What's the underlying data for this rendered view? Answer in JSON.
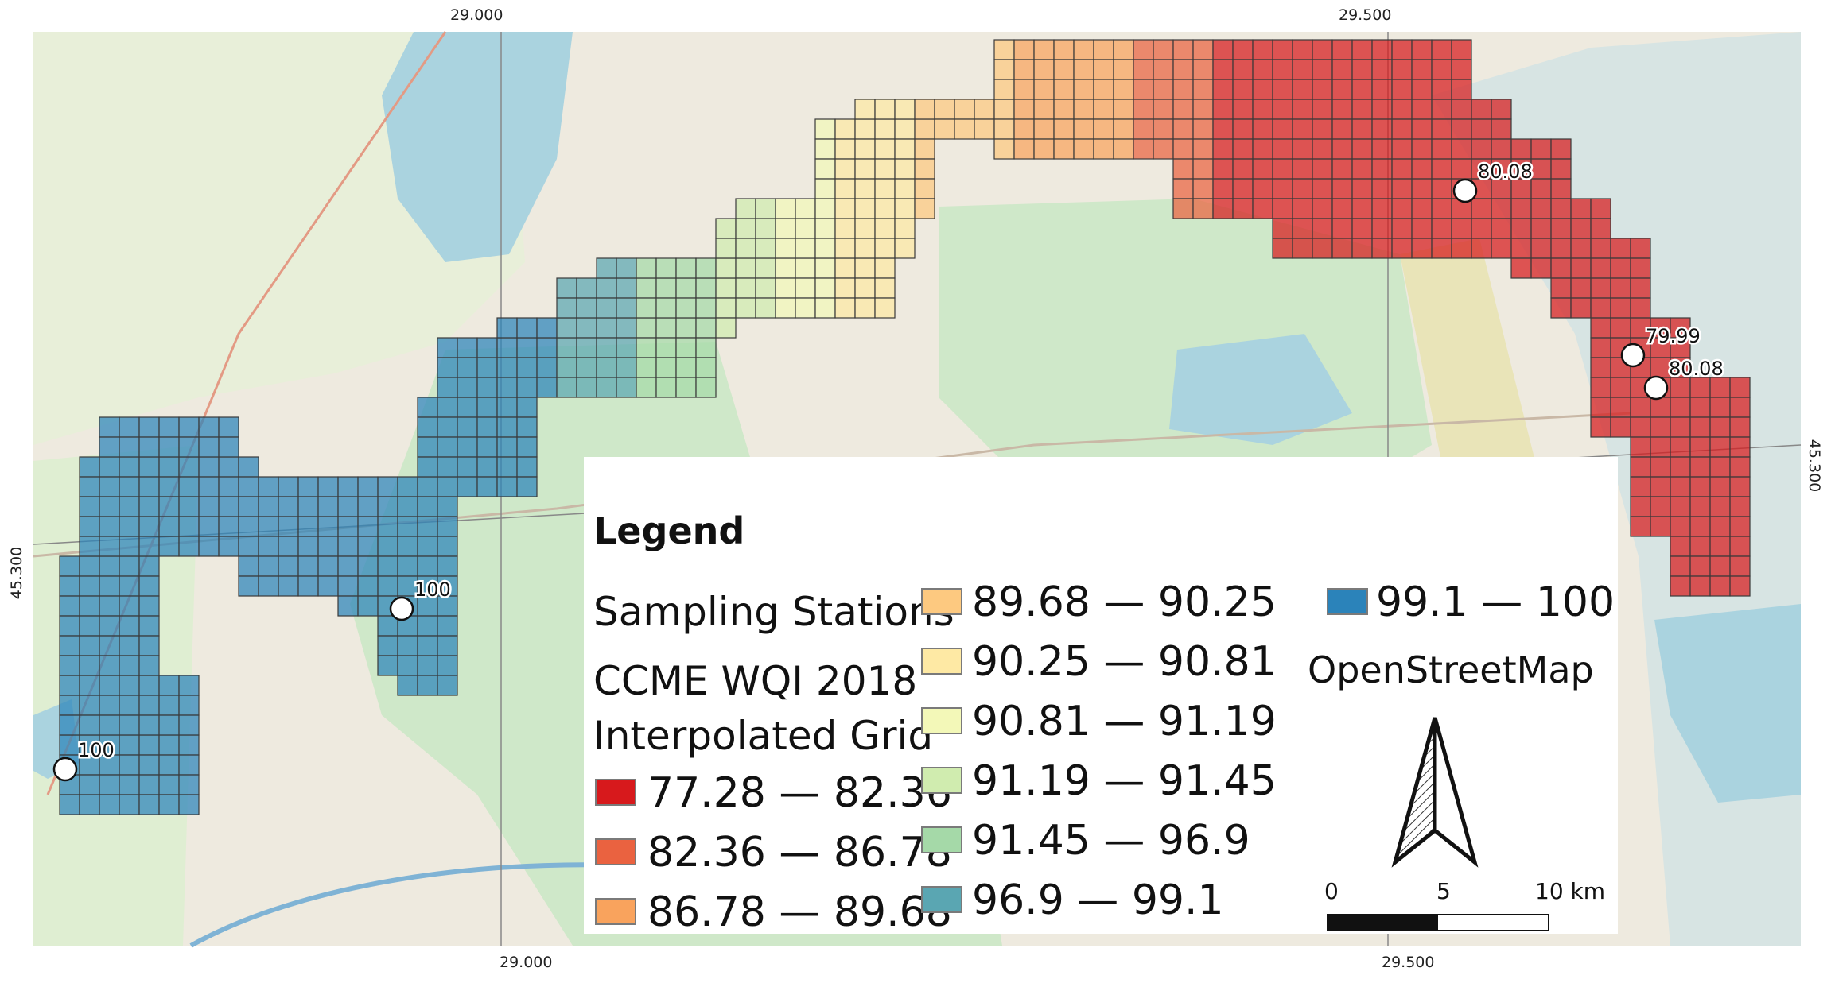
{
  "map": {
    "coords": {
      "top_left_lon": "29.000",
      "top_right_lon": "29.500",
      "bottom_left_lon": "29.000",
      "bottom_right_lon": "29.500",
      "left_lat": "45.300",
      "right_lat": "45.300"
    },
    "stations": [
      {
        "label": "100"
      },
      {
        "label": "100"
      },
      {
        "label": "80.08"
      },
      {
        "label": "79.99"
      },
      {
        "label": "80.08"
      }
    ]
  },
  "legend": {
    "title": "Legend",
    "stations_label": "Sampling Stations",
    "grid_title_line1": "CCME WQI 2018",
    "grid_title_line2": "Interpolated Grid",
    "classes": [
      {
        "label": "77.28 — 82.36",
        "color": "#d7191c"
      },
      {
        "label": "82.36 — 86.78",
        "color": "#ea6240"
      },
      {
        "label": "86.78 — 89.68",
        "color": "#f9a35d"
      },
      {
        "label": "89.68 — 90.25",
        "color": "#fdc980"
      },
      {
        "label": "90.25 — 90.81",
        "color": "#fee9a4"
      },
      {
        "label": "90.81 — 91.19",
        "color": "#f3f8b8"
      },
      {
        "label": "91.19 — 91.45",
        "color": "#d0ecaf"
      },
      {
        "label": "91.45 — 96.9",
        "color": "#a5d9a8"
      },
      {
        "label": "96.9 — 99.1",
        "color": "#5aa6b2"
      },
      {
        "label": "99.1 — 100",
        "color": "#2b83ba"
      }
    ],
    "basemap_label": "OpenStreetMap",
    "scale_bar": {
      "tick0": "0",
      "tick1": "5",
      "tick2": "10 km"
    }
  }
}
